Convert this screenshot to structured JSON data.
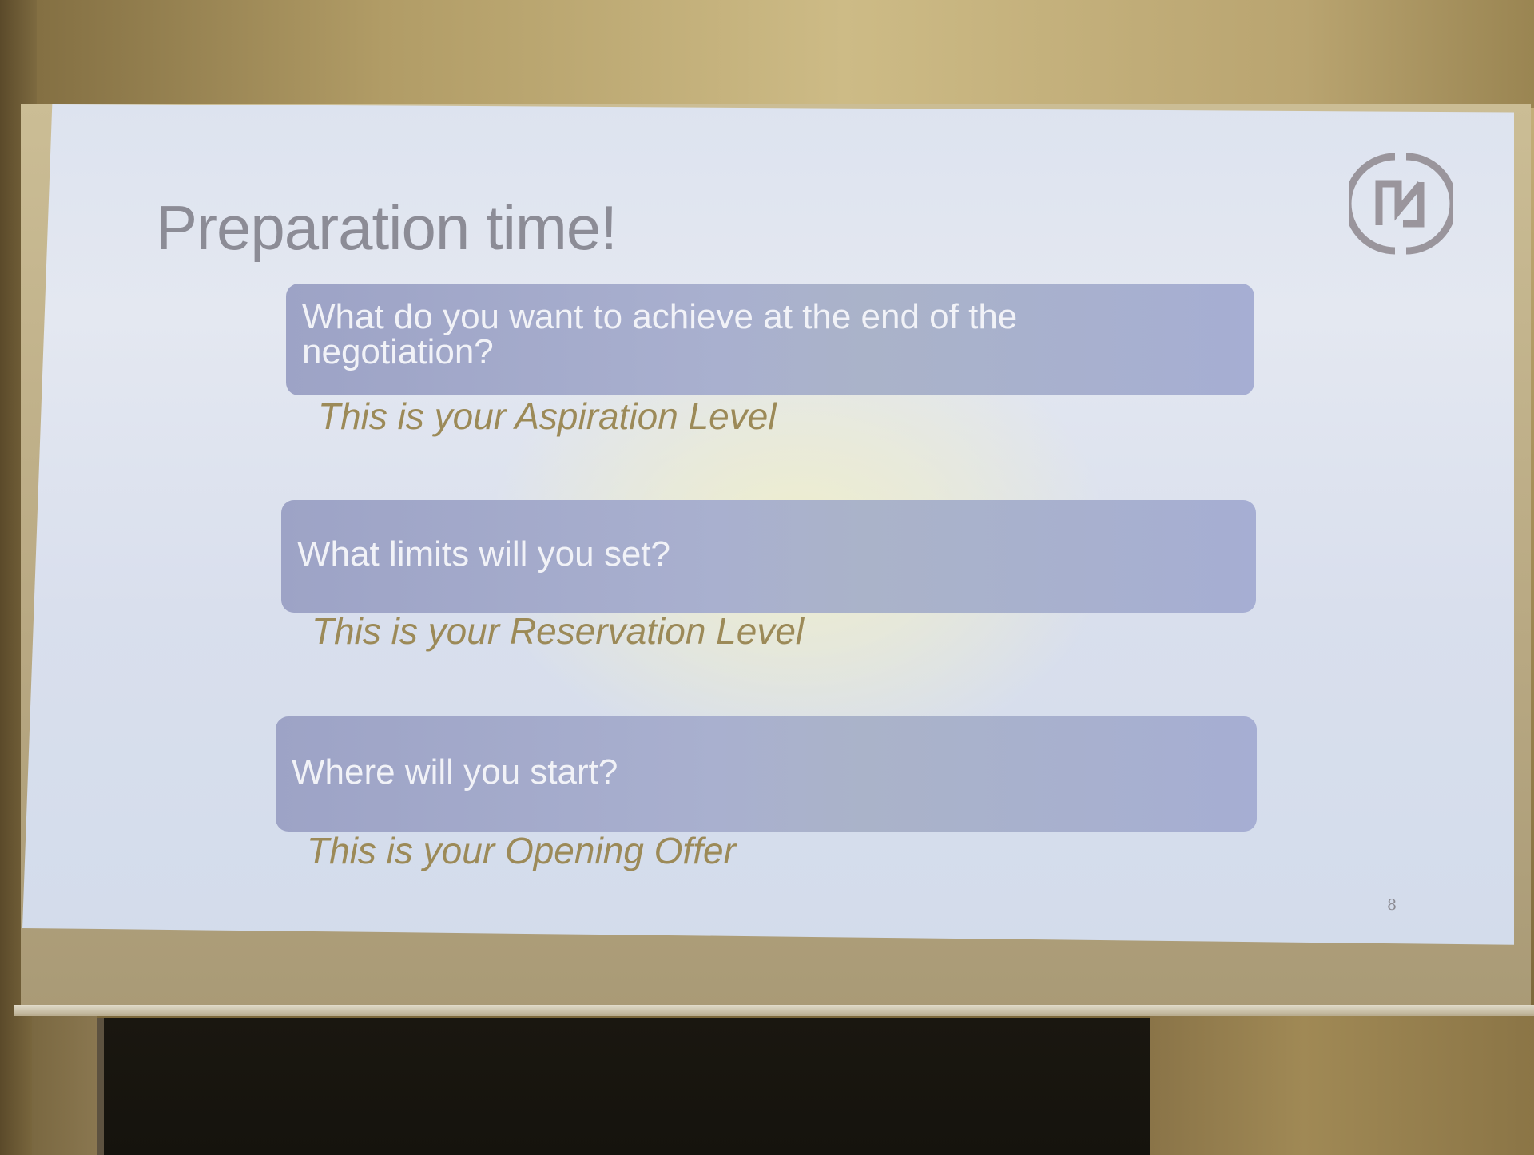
{
  "slide": {
    "title": "Preparation time!",
    "page_number": "8",
    "items": [
      {
        "question": "What do you want to achieve at the end of the negotiation?",
        "answer": "This is your Aspiration Level"
      },
      {
        "question": "What limits will you set?",
        "answer": "This is your Reservation Level"
      },
      {
        "question": "Where will you start?",
        "answer": "This is your Opening Offer"
      }
    ],
    "logo_icon": "circle-n-logo-icon"
  },
  "colors": {
    "title": "#8c8c96",
    "box_fill": "#a6aed3",
    "box_text": "#f1f2f7",
    "answer_text": "#9c8a58"
  }
}
